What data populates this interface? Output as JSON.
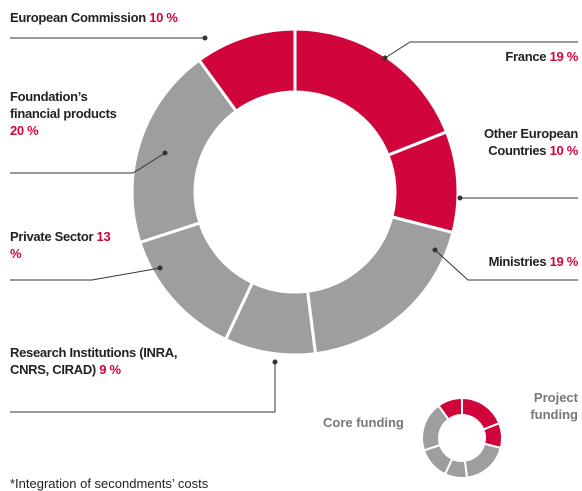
{
  "chart_data": {
    "type": "donut",
    "categories": [
      "France",
      "Other European Countries",
      "Ministries",
      "Research Institutions (INRA, CNRS, CIRAD)",
      "Private Sector",
      "Foundation’s financial products",
      "European Commission"
    ],
    "values": [
      19,
      10,
      19,
      9,
      13,
      20,
      10
    ],
    "value_labels": [
      "19 %",
      "10 %",
      "19 %",
      "9 %",
      "13 %",
      "20 %",
      "10 %"
    ],
    "colors": [
      "#d0053c",
      "#d0053c",
      "#9e9ea0",
      "#9e9ea0",
      "#9e9ea0",
      "#9e9ea0",
      "#d0053c"
    ],
    "legend": [
      {
        "label": "Project funding",
        "color": "#d0053c"
      },
      {
        "label": "Core funding",
        "color": "#9e9ea0"
      }
    ],
    "footnote": "*Integration of secondments’ costs"
  }
}
